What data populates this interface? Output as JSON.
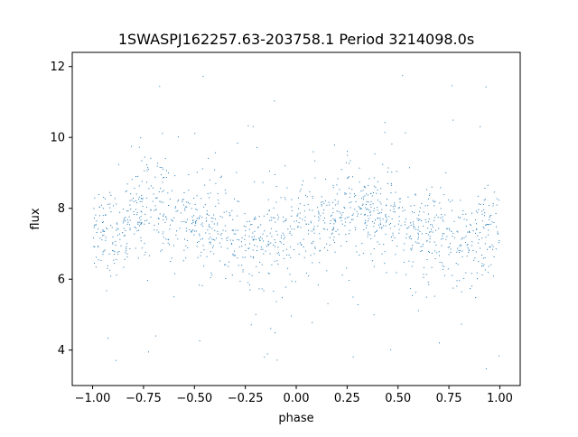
{
  "chart_data": {
    "type": "scatter",
    "title": "1SWASPJ162257.63-203758.1 Period 3214098.0s",
    "xlabel": "phase",
    "ylabel": "flux",
    "xlim": [
      -1.1,
      1.1
    ],
    "ylim": [
      3.0,
      12.4
    ],
    "x_ticks": [
      -1.0,
      -0.75,
      -0.5,
      -0.25,
      0.0,
      0.25,
      0.5,
      0.75,
      1.0
    ],
    "x_tick_labels": [
      "−1.00",
      "−0.75",
      "−0.50",
      "−0.25",
      "0.00",
      "0.25",
      "0.50",
      "0.75",
      "1.00"
    ],
    "y_ticks": [
      4,
      6,
      8,
      10,
      12
    ],
    "y_tick_labels": [
      "4",
      "6",
      "8",
      "10",
      "12"
    ],
    "grid": false,
    "legend": "none",
    "series": [
      {
        "color": "#1f77b4",
        "marker": "dot",
        "phase_range": [
          -1.0,
          1.0
        ],
        "profile": {
          "x": [
            -1.0,
            -0.95,
            -0.9,
            -0.85,
            -0.8,
            -0.75,
            -0.7,
            -0.65,
            -0.6,
            -0.55,
            -0.5,
            -0.45,
            -0.4,
            -0.35,
            -0.3,
            -0.25,
            -0.2,
            -0.15,
            -0.1,
            -0.05,
            0.0
          ],
          "y": [
            7.4,
            7.3,
            7.2,
            7.5,
            7.8,
            8.0,
            8.1,
            8.0,
            7.8,
            7.7,
            7.6,
            7.5,
            7.3,
            7.4,
            7.2,
            7.1,
            7.0,
            6.9,
            7.2,
            7.5,
            7.4
          ]
        },
        "core_spread": 0.45,
        "outlier_range": [
          3.4,
          12.0
        ]
      }
    ]
  }
}
